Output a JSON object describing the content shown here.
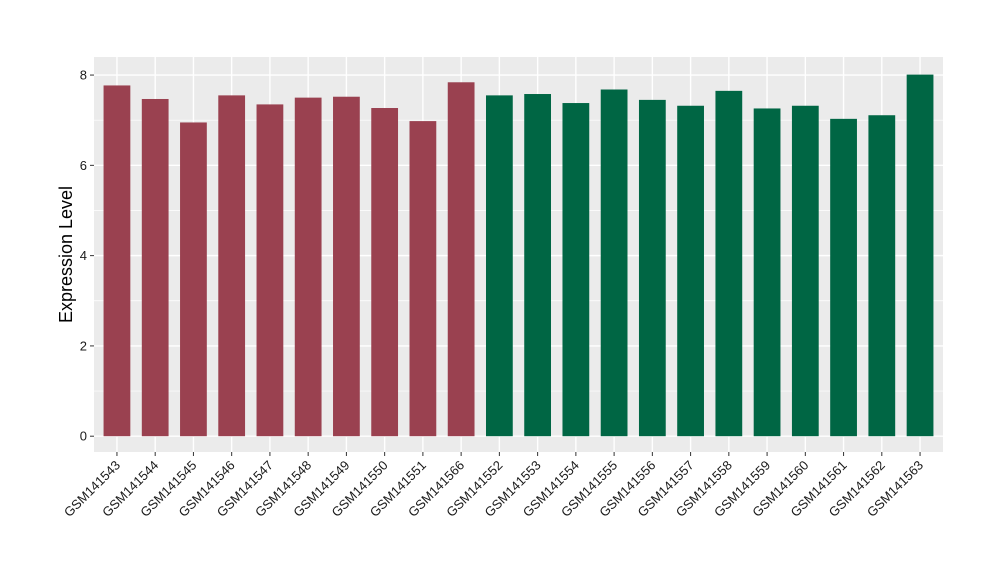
{
  "chart_data": {
    "type": "bar",
    "title": "",
    "xlabel": "",
    "ylabel": "Expression Level",
    "ylim": [
      -0.35,
      8.4
    ],
    "yticks": [
      0,
      2,
      4,
      6,
      8
    ],
    "grid": true,
    "legend": "none",
    "panel_background": "#ebebeb",
    "grid_color": "#ffffff",
    "categories": [
      "GSM141543",
      "GSM141544",
      "GSM141545",
      "GSM141546",
      "GSM141547",
      "GSM141548",
      "GSM141549",
      "GSM141550",
      "GSM141551",
      "GSM141566",
      "GSM141552",
      "GSM141553",
      "GSM141554",
      "GSM141555",
      "GSM141556",
      "GSM141557",
      "GSM141558",
      "GSM141559",
      "GSM141560",
      "GSM141561",
      "GSM141562",
      "GSM141563"
    ],
    "values": [
      7.77,
      7.47,
      6.95,
      7.55,
      7.35,
      7.5,
      7.52,
      7.27,
      6.98,
      7.84,
      7.55,
      7.58,
      7.38,
      7.68,
      7.45,
      7.32,
      7.65,
      7.26,
      7.32,
      7.03,
      7.11,
      8.01
    ],
    "colors": [
      "#9a4150",
      "#9a4150",
      "#9a4150",
      "#9a4150",
      "#9a4150",
      "#9a4150",
      "#9a4150",
      "#9a4150",
      "#9a4150",
      "#9a4150",
      "#006644",
      "#006644",
      "#006644",
      "#006644",
      "#006644",
      "#006644",
      "#006644",
      "#006644",
      "#006644",
      "#006644",
      "#006644",
      "#006644"
    ]
  }
}
